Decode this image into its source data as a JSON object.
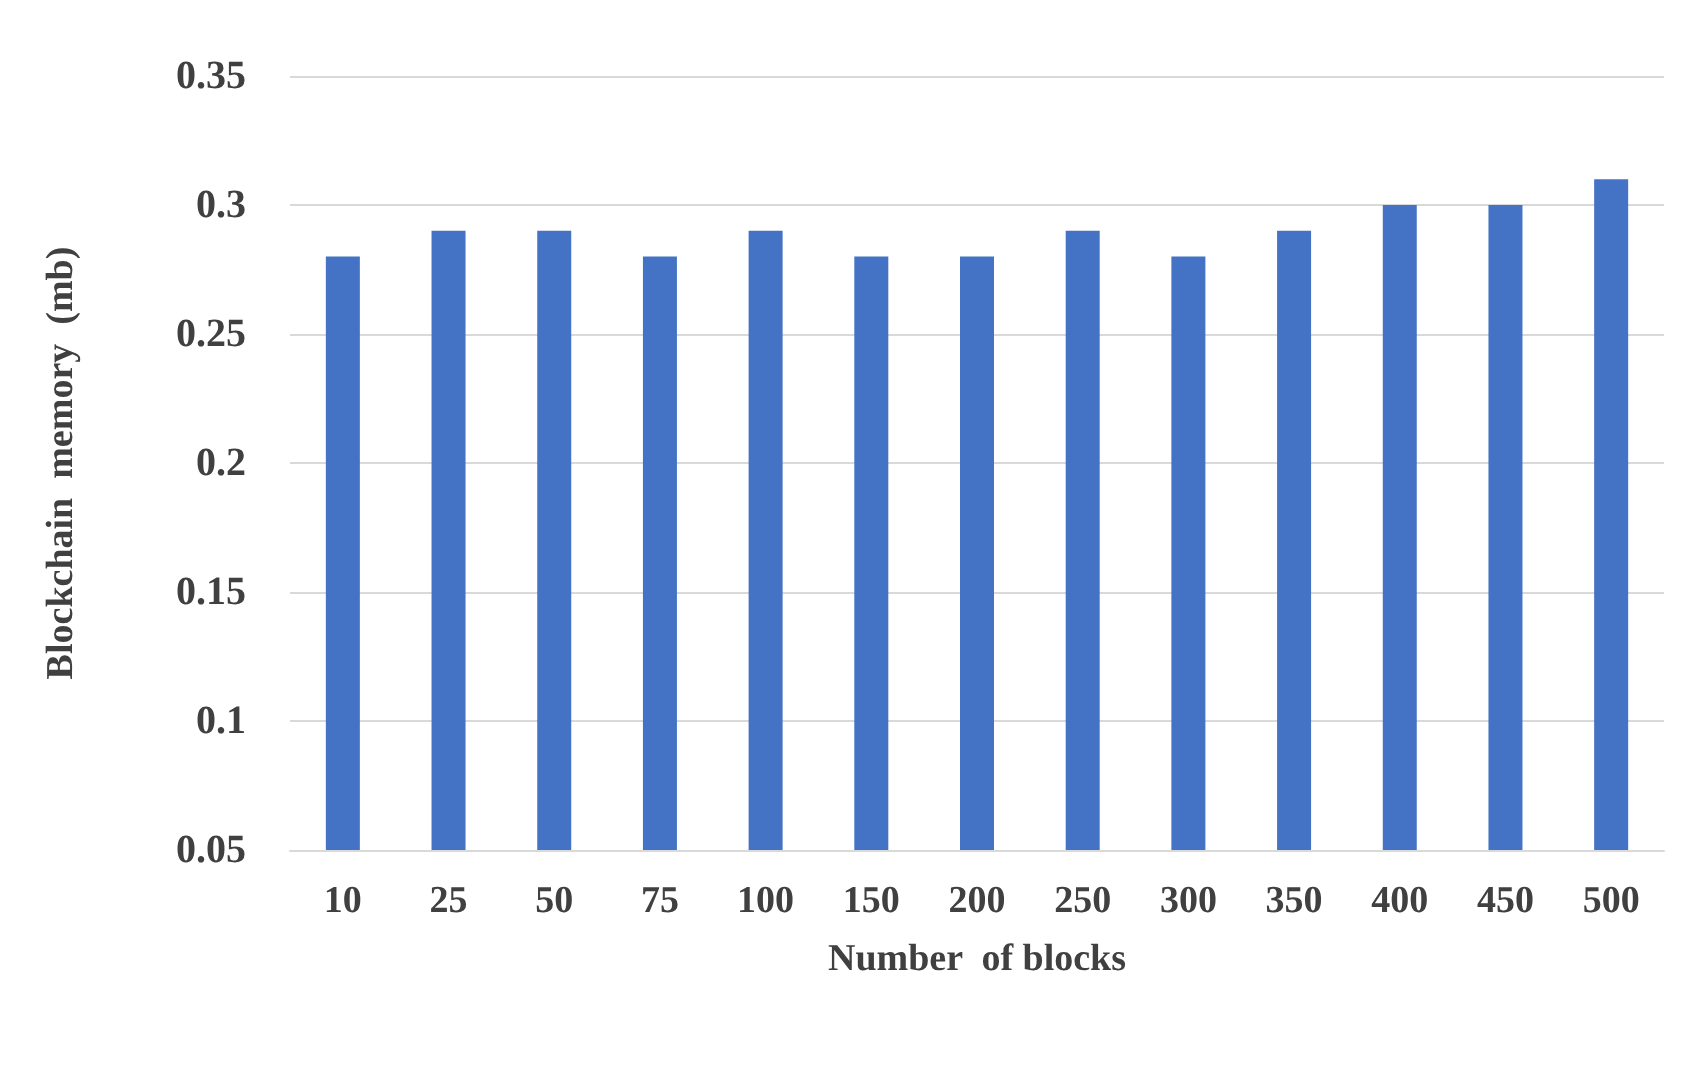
{
  "chart_data": {
    "type": "bar",
    "xlabel": "Number  of blocks",
    "ylabel": "Blockchain  memory  (mb)",
    "categories": [
      "10",
      "25",
      "50",
      "75",
      "100",
      "150",
      "200",
      "250",
      "300",
      "350",
      "400",
      "450",
      "500"
    ],
    "values": [
      0.28,
      0.29,
      0.29,
      0.28,
      0.29,
      0.28,
      0.28,
      0.29,
      0.28,
      0.29,
      0.3,
      0.3,
      0.31
    ],
    "color": "#4472c4",
    "ylim": [
      0.05,
      0.35
    ],
    "yticks": [
      0.05,
      0.1,
      0.15,
      0.2,
      0.25,
      0.3,
      0.35
    ],
    "grid": "y"
  }
}
